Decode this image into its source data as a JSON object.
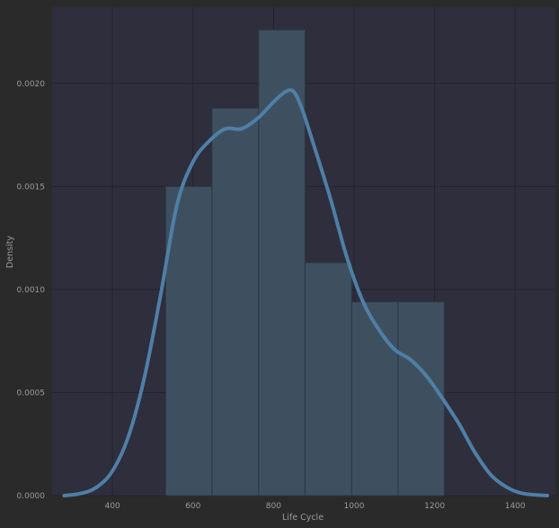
{
  "chart_data": {
    "type": "bar",
    "title": "",
    "xlabel": "Life Cycle",
    "ylabel": "Density",
    "xlim": [
      250,
      1500
    ],
    "ylim": [
      0,
      0.00237
    ],
    "xticks": [
      400,
      600,
      800,
      1000,
      1200,
      1400
    ],
    "yticks": [
      0.0,
      0.0005,
      0.001,
      0.0015,
      0.002
    ],
    "ytick_labels": [
      "0.0000",
      "0.0005",
      "0.0010",
      "0.0015",
      "0.0020"
    ],
    "grid": true,
    "histogram": {
      "bin_edges": [
        532,
        647,
        763,
        878,
        994,
        1109,
        1224
      ],
      "densities": [
        0.0015,
        0.00188,
        0.00226,
        0.00113,
        0.00094,
        0.00094
      ]
    },
    "kde": {
      "x": [
        280,
        320,
        360,
        400,
        440,
        480,
        520,
        560,
        600,
        640,
        680,
        720,
        760,
        800,
        830,
        850,
        870,
        900,
        940,
        980,
        1020,
        1060,
        1100,
        1140,
        1180,
        1220,
        1260,
        1300,
        1340,
        1380,
        1420,
        1480
      ],
      "y": [
        0.0,
        1e-05,
        4e-05,
        0.00012,
        0.00029,
        0.00058,
        0.00098,
        0.00141,
        0.00162,
        0.00172,
        0.00178,
        0.00178,
        0.00183,
        0.00191,
        0.00196,
        0.00196,
        0.00188,
        0.0017,
        0.00145,
        0.00117,
        0.00095,
        0.00081,
        0.00071,
        0.00066,
        0.00058,
        0.00047,
        0.00035,
        0.00021,
        0.0001,
        4e-05,
        1e-05,
        0.0
      ]
    }
  },
  "colors": {
    "background": "#2a2a2a",
    "plot_area": "#2e2e3c",
    "grid": "#232330",
    "bar_fill": "#3e5060",
    "bar_edge": "#2c3744",
    "kde_line": "#4f7fa6",
    "text": "#9a9a9a"
  }
}
